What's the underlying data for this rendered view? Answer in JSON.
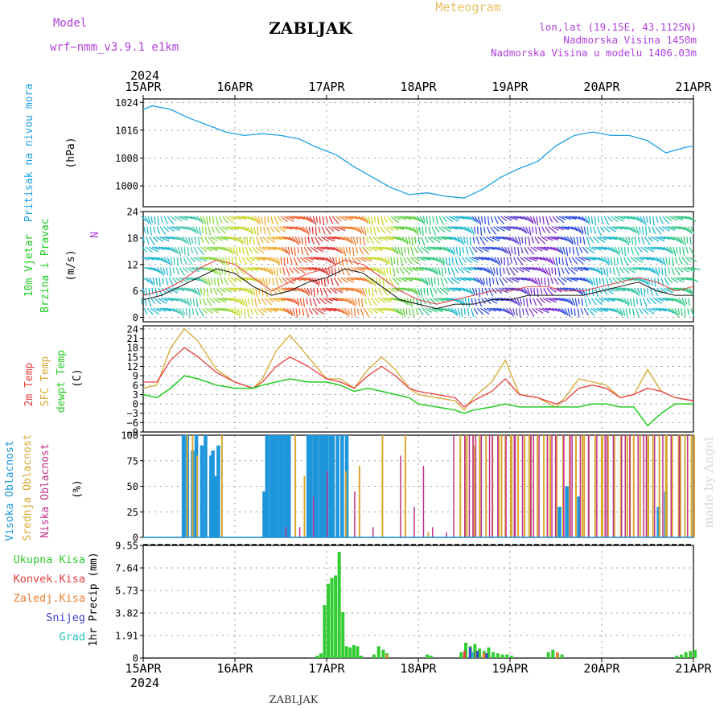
{
  "header": {
    "model_label": "Model",
    "model_name": "wrf−nmm_v3.9.1  e1km",
    "station_title": "ZABLJAK",
    "meteogram_label": "Meteogram",
    "lonlat": "lon,lat (19.15E, 43.1125N)",
    "altitude": "Nadmorska Visina 1450m",
    "model_altitude": "Nadmorska Visina u modelu 1406.03m",
    "watermark": "made by Angel",
    "footer_station": "ZABLJAK"
  },
  "colors": {
    "pressure": "#1ea0e6",
    "t2m": "#e83c3c",
    "sfc": "#d8a830",
    "dewpt": "#22cc22",
    "cloud_high": "#1e96dc",
    "cloud_mid": "#d8a830",
    "cloud_low": "#c0308c",
    "precip_total": "#33cc33",
    "precip_conv": "#e83c3c",
    "precip_frozen": "#f08030",
    "snow": "#4040d8",
    "hail": "#22c0c0",
    "wind_label": "#b040e0"
  },
  "chart_data": [
    {
      "type": "line",
      "name": "pressure",
      "title_lines": [
        "Pritisak na nivou mora"
      ],
      "unit_label": "(hPa)",
      "x_dates": [
        "15APR",
        "16APR",
        "17APR",
        "18APR",
        "19APR",
        "20APR",
        "21APR"
      ],
      "x_year": "2024",
      "ylim": [
        994,
        1025
      ],
      "yticks": [
        "1000",
        "1008",
        "1016",
        "1024"
      ],
      "yticks_values": [
        1000,
        1008,
        1016,
        1024
      ],
      "series": [
        {
          "x": [
            0,
            0.1,
            0.3,
            0.5,
            0.7,
            0.9,
            1.1,
            1.3,
            1.5,
            1.7,
            1.9,
            2.1,
            2.3,
            2.5,
            2.7,
            2.9,
            3.1,
            3.3,
            3.5,
            3.7,
            3.9,
            4.1,
            4.3,
            4.5,
            4.7,
            4.9,
            5.1,
            5.3,
            5.5,
            5.7,
            5.9,
            6.0
          ],
          "y": [
            1022,
            1023,
            1022,
            1019.5,
            1017.5,
            1015.5,
            1014.5,
            1015,
            1014.5,
            1013.5,
            1011,
            1009,
            1005.5,
            1002.5,
            999.5,
            997.5,
            998,
            997,
            996.5,
            999,
            1002.5,
            1005,
            1007,
            1011.5,
            1014.5,
            1015.5,
            1014.5,
            1014.5,
            1013,
            1009.5,
            1011,
            1011.5
          ]
        }
      ]
    },
    {
      "type": "line",
      "name": "wind",
      "title_lines": [
        "10m Vjetar",
        "Brzina i Pravac"
      ],
      "unit_label": "(m/s)",
      "compass_label": "N",
      "ylim": [
        -1,
        24
      ],
      "yticks": [
        "0",
        "6",
        "12",
        "18",
        "24"
      ],
      "yticks_values": [
        0,
        6,
        12,
        18,
        24
      ],
      "series": [
        {
          "x": [
            0,
            0.2,
            0.4,
            0.6,
            0.8,
            1.0,
            1.2,
            1.4,
            1.6,
            1.8,
            2.0,
            2.2,
            2.4,
            2.6,
            2.8,
            3.0,
            3.2,
            3.4,
            3.6,
            3.8,
            4.0,
            4.2,
            4.4,
            4.6,
            4.8,
            5.0,
            5.2,
            5.4,
            5.6,
            5.8,
            6.0
          ],
          "y": [
            5,
            6,
            8,
            11,
            13,
            12,
            9,
            6,
            8,
            10,
            11,
            13,
            12,
            9,
            6,
            4,
            3,
            4,
            5,
            6,
            6,
            7,
            7,
            6,
            6,
            7,
            8,
            9,
            8,
            6,
            7
          ]
        },
        {
          "x": [
            0,
            0.2,
            0.4,
            0.6,
            0.8,
            1.0,
            1.2,
            1.4,
            1.6,
            1.8,
            2.0,
            2.2,
            2.4,
            2.6,
            2.8,
            3.0,
            3.2,
            3.4,
            3.6,
            3.8,
            4.0,
            4.2,
            4.4,
            4.6,
            4.8,
            5.0,
            5.2,
            5.4,
            5.6,
            5.8,
            6.0
          ],
          "y": [
            4,
            5,
            7,
            9,
            11,
            10,
            7,
            5,
            6,
            8,
            9,
            11,
            10,
            7,
            4,
            3,
            2,
            3,
            3,
            4,
            4,
            5,
            5,
            5,
            5,
            6,
            7,
            8,
            6,
            5,
            5
          ]
        }
      ]
    },
    {
      "type": "line",
      "name": "temperature",
      "title_lines": [
        "2m Temp",
        "SFC Temp",
        "dewpt Temp"
      ],
      "unit_label": "(C)",
      "ylim": [
        -9,
        25
      ],
      "yticks": [
        "24",
        "21",
        "18",
        "15",
        "12",
        "9",
        "6",
        "3",
        "0",
        "−3",
        "−6",
        "−9"
      ],
      "yticks_values": [
        24,
        21,
        18,
        15,
        12,
        9,
        6,
        3,
        0,
        -3,
        -6,
        -9
      ],
      "series": [
        {
          "name": "2m Temp",
          "x": [
            0,
            0.15,
            0.3,
            0.45,
            0.6,
            0.8,
            1.0,
            1.2,
            1.3,
            1.45,
            1.6,
            1.8,
            2.0,
            2.15,
            2.3,
            2.45,
            2.6,
            2.75,
            2.9,
            3.0,
            3.2,
            3.4,
            3.5,
            3.6,
            3.8,
            3.95,
            4.1,
            4.3,
            4.5,
            4.6,
            4.75,
            4.9,
            5.05,
            5.2,
            5.35,
            5.5,
            5.65,
            5.8,
            6.0
          ],
          "y": [
            7,
            7,
            14,
            18,
            15,
            10,
            7,
            5,
            7,
            12,
            15,
            12,
            8,
            7,
            5,
            9,
            12,
            9,
            5,
            4,
            3,
            2,
            -1,
            1,
            4,
            8,
            3,
            2,
            0,
            1,
            5,
            6,
            5,
            2,
            3,
            5,
            4,
            2,
            1
          ]
        },
        {
          "name": "SFC Temp",
          "x": [
            0,
            0.15,
            0.3,
            0.45,
            0.6,
            0.8,
            1.0,
            1.2,
            1.3,
            1.45,
            1.6,
            1.8,
            2.0,
            2.15,
            2.3,
            2.45,
            2.6,
            2.75,
            2.9,
            3.0,
            3.2,
            3.4,
            3.5,
            3.6,
            3.8,
            3.95,
            4.1,
            4.3,
            4.5,
            4.6,
            4.75,
            4.9,
            5.05,
            5.2,
            5.35,
            5.5,
            5.65,
            5.8,
            6.0
          ],
          "y": [
            5,
            6,
            18,
            24,
            20,
            11,
            7,
            5,
            8,
            17,
            22,
            15,
            8,
            8,
            5,
            11,
            15,
            11,
            5,
            3,
            2,
            1,
            -2,
            2,
            7,
            14,
            3,
            2,
            -1,
            2,
            8,
            7,
            6,
            2,
            3,
            11,
            4,
            2,
            1
          ]
        },
        {
          "name": "dewpt Temp",
          "x": [
            0,
            0.15,
            0.3,
            0.45,
            0.6,
            0.8,
            1.0,
            1.2,
            1.3,
            1.45,
            1.6,
            1.8,
            2.0,
            2.15,
            2.3,
            2.45,
            2.6,
            2.75,
            2.9,
            3.0,
            3.2,
            3.4,
            3.5,
            3.6,
            3.8,
            3.95,
            4.1,
            4.3,
            4.5,
            4.6,
            4.75,
            4.9,
            5.05,
            5.2,
            5.35,
            5.5,
            5.65,
            5.8,
            6.0
          ],
          "y": [
            3,
            2,
            5,
            9,
            8,
            6,
            5,
            5,
            6,
            7,
            8,
            7,
            7,
            6,
            4,
            5,
            4,
            3,
            2,
            0,
            -1,
            -2,
            -3,
            -2,
            -1,
            0,
            -1,
            -1,
            -1,
            -1,
            -1,
            0,
            0,
            -1,
            -1,
            -7,
            -3,
            0,
            0
          ]
        }
      ]
    },
    {
      "type": "bar",
      "name": "clouds",
      "title_lines": [
        "Visoka Oblacnost",
        "Srednja Oblacnost",
        "Niska Oblacnost"
      ],
      "unit_label": "(%)",
      "ylim": [
        0,
        100
      ],
      "yticks": [
        "0",
        "25",
        "50",
        "75",
        "100"
      ],
      "yticks_values": [
        0,
        25,
        50,
        75,
        100
      ],
      "series": [
        {
          "name": "Visoka Oblacnost",
          "x": [
            0.42,
            0.46,
            0.52,
            0.56,
            0.62,
            0.66,
            0.72,
            0.74,
            0.77,
            0.8,
            1.3,
            1.33,
            1.37,
            1.4,
            1.43,
            1.47,
            1.5,
            1.54,
            1.57,
            1.78,
            1.81,
            1.85,
            1.88,
            1.92,
            1.95,
            1.98,
            2.02,
            2.05,
            2.1,
            2.15,
            2.2,
            4.52,
            4.6,
            4.73,
            5.6,
            5.68
          ],
          "y": [
            100,
            100,
            85,
            100,
            90,
            100,
            80,
            85,
            60,
            90,
            45,
            100,
            100,
            100,
            100,
            100,
            100,
            100,
            100,
            100,
            100,
            100,
            100,
            100,
            100,
            100,
            100,
            100,
            100,
            100,
            100,
            30,
            50,
            40,
            30,
            45
          ]
        },
        {
          "name": "Srednja Oblacnost",
          "x": [
            0.47,
            0.53,
            0.58,
            0.85,
            1.65,
            1.75,
            2.2,
            2.35,
            2.6,
            2.85,
            3.1,
            3.5,
            3.6,
            3.9,
            4.0,
            4.2,
            4.4,
            4.8,
            5.0,
            5.3,
            5.5,
            5.7,
            5.85,
            6.0
          ],
          "y": [
            100,
            100,
            80,
            100,
            100,
            60,
            65,
            70,
            100,
            100,
            5,
            100,
            90,
            100,
            100,
            100,
            100,
            100,
            100,
            100,
            100,
            100,
            100,
            100
          ],
          "repeat_band": [
            3.45,
            6.0,
            0.07,
            100
          ]
        },
        {
          "name": "Niska Oblacnost",
          "x": [
            1.55,
            1.7,
            1.85,
            2.0,
            2.3,
            2.5,
            2.8,
            2.95,
            3.05,
            3.15,
            3.3,
            3.38,
            3.55,
            3.62,
            3.8,
            4.05,
            4.25,
            4.45,
            4.65,
            4.85,
            5.05,
            5.25,
            5.45,
            5.75
          ],
          "y": [
            10,
            10,
            40,
            65,
            45,
            10,
            80,
            30,
            70,
            10,
            5,
            100,
            100,
            100,
            100,
            100,
            100,
            100,
            100,
            100,
            100,
            100,
            100,
            100
          ],
          "repeat_band": [
            3.5,
            6.0,
            0.09,
            100
          ]
        }
      ]
    },
    {
      "type": "bar",
      "name": "precipitation",
      "title_lines": [
        "Ukupna Kisa",
        "Konvek.Kisa",
        "Zaledj.Kisa",
        "Snijeg",
        "Grad"
      ],
      "unit_label": "1hr Precip (mm)",
      "ylim": [
        0,
        9.55
      ],
      "yticks": [
        "9.55",
        "7.64",
        "5.73",
        "3.82",
        "1.91",
        "0"
      ],
      "yticks_values": [
        9.55,
        7.64,
        5.73,
        3.82,
        1.91,
        0
      ],
      "series": [
        {
          "name": "Ukupna Kisa",
          "x": [
            1.88,
            1.92,
            1.96,
            2.0,
            2.04,
            2.08,
            2.12,
            2.16,
            2.2,
            2.24,
            2.28,
            2.32,
            2.36,
            2.5,
            2.55,
            2.6,
            2.64,
            3.08,
            3.12,
            3.45,
            3.5,
            3.55,
            3.6,
            3.65,
            3.7,
            3.75,
            3.8,
            3.85,
            3.9,
            3.95,
            4.0,
            4.4,
            4.45,
            4.5,
            4.55,
            5.8,
            5.85,
            5.9,
            5.95,
            6.0
          ],
          "y": [
            0.2,
            0.4,
            4.5,
            6.3,
            6.8,
            7.0,
            9.0,
            3.9,
            1.0,
            0.9,
            1.1,
            1.0,
            0.2,
            0.3,
            1.0,
            0.7,
            0.4,
            0.3,
            0.2,
            0.5,
            1.3,
            1.0,
            1.2,
            0.8,
            0.6,
            0.9,
            0.5,
            0.4,
            0.3,
            0.3,
            0.2,
            0.5,
            0.7,
            0.4,
            0.3,
            0.2,
            0.3,
            0.5,
            0.6,
            0.7
          ]
        },
        {
          "name": "Konvek.Kisa",
          "x": [
            3.48,
            3.58,
            3.72
          ],
          "y": [
            0.6,
            0.5,
            0.3
          ]
        },
        {
          "name": "Zaledj.Kisa",
          "x": [
            2.62,
            3.68,
            4.48
          ],
          "y": [
            0.3,
            0.4,
            0.5
          ]
        },
        {
          "name": "Snijeg",
          "x": [
            3.52,
            3.6,
            3.7
          ],
          "y": [
            0.9,
            0.6,
            0.4
          ]
        },
        {
          "name": "Grad",
          "x": [
            3.54
          ],
          "y": [
            0.5
          ]
        }
      ]
    }
  ]
}
